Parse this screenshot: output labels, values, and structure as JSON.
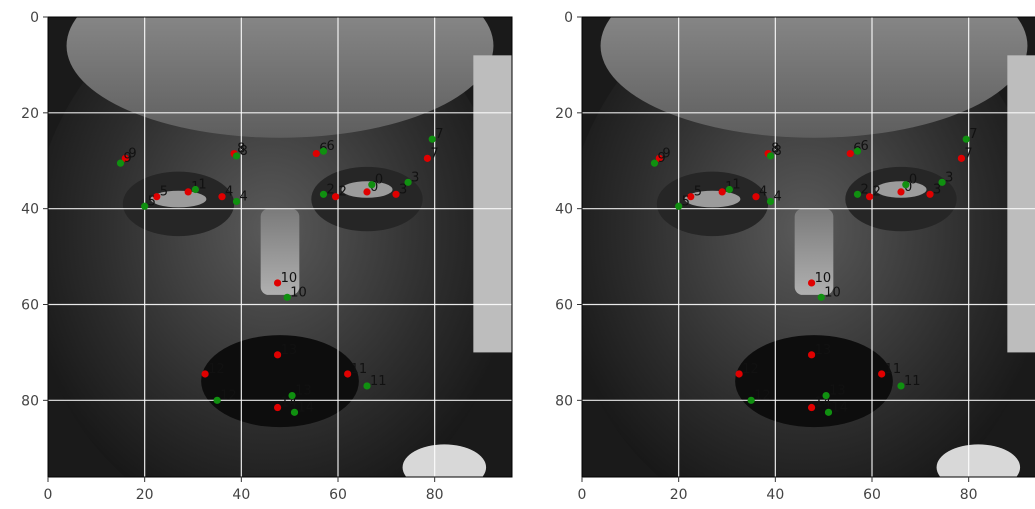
{
  "chart_data": [
    {
      "type": "scatter",
      "background": "grayscale face image",
      "xlim": [
        0,
        96
      ],
      "ylim": [
        96,
        0
      ],
      "xticks": [
        0,
        20,
        40,
        60,
        80
      ],
      "yticks": [
        0,
        20,
        40,
        60,
        80
      ],
      "grid": true,
      "series": [
        {
          "color": "#e00000",
          "points": [
            {
              "label": "0",
              "x": 66,
              "y": 36.5
            },
            {
              "label": "1",
              "x": 29,
              "y": 36.5
            },
            {
              "label": "2",
              "x": 59.5,
              "y": 37.5
            },
            {
              "label": "3",
              "x": 72,
              "y": 37
            },
            {
              "label": "4",
              "x": 36,
              "y": 37.5
            },
            {
              "label": "5",
              "x": 22.5,
              "y": 37.5
            },
            {
              "label": "6",
              "x": 55.5,
              "y": 28.5
            },
            {
              "label": "7",
              "x": 78.5,
              "y": 29.5
            },
            {
              "label": "8",
              "x": 38.5,
              "y": 28.5
            },
            {
              "label": "9",
              "x": 16,
              "y": 29.5
            },
            {
              "label": "10",
              "x": 47.5,
              "y": 55.5
            },
            {
              "label": "11",
              "x": 62,
              "y": 74.5
            },
            {
              "label": "12",
              "x": 32.5,
              "y": 74.5
            },
            {
              "label": "13",
              "x": 47.5,
              "y": 70.5
            },
            {
              "label": "14",
              "x": 47.5,
              "y": 81.5
            }
          ]
        },
        {
          "color": "#109010",
          "points": [
            {
              "label": "0",
              "x": 67,
              "y": 35
            },
            {
              "label": "1",
              "x": 30.5,
              "y": 36
            },
            {
              "label": "2",
              "x": 57,
              "y": 37
            },
            {
              "label": "3",
              "x": 74.5,
              "y": 34.5
            },
            {
              "label": "4",
              "x": 39,
              "y": 38.5
            },
            {
              "label": "5",
              "x": 20,
              "y": 39.5
            },
            {
              "label": "6",
              "x": 57,
              "y": 28
            },
            {
              "label": "7",
              "x": 79.5,
              "y": 25.5
            },
            {
              "label": "8",
              "x": 39,
              "y": 29
            },
            {
              "label": "9",
              "x": 15,
              "y": 30.5
            },
            {
              "label": "10",
              "x": 49.5,
              "y": 58.5
            },
            {
              "label": "11",
              "x": 66,
              "y": 77
            },
            {
              "label": "12",
              "x": 35,
              "y": 80
            },
            {
              "label": "13",
              "x": 50.5,
              "y": 79
            },
            {
              "label": "14",
              "x": 51,
              "y": 82.5
            }
          ]
        }
      ]
    },
    {
      "type": "scatter",
      "background": "grayscale face image",
      "xlim": [
        0,
        96
      ],
      "ylim": [
        96,
        0
      ],
      "xticks": [
        0,
        20,
        40,
        60,
        80
      ],
      "yticks": [
        0,
        20,
        40,
        60,
        80
      ],
      "grid": true,
      "series": [
        {
          "color": "#e00000",
          "points": [
            {
              "label": "0",
              "x": 66,
              "y": 36.5
            },
            {
              "label": "1",
              "x": 29,
              "y": 36.5
            },
            {
              "label": "2",
              "x": 59.5,
              "y": 37.5
            },
            {
              "label": "3",
              "x": 72,
              "y": 37
            },
            {
              "label": "4",
              "x": 36,
              "y": 37.5
            },
            {
              "label": "5",
              "x": 22.5,
              "y": 37.5
            },
            {
              "label": "6",
              "x": 55.5,
              "y": 28.5
            },
            {
              "label": "7",
              "x": 78.5,
              "y": 29.5
            },
            {
              "label": "8",
              "x": 38.5,
              "y": 28.5
            },
            {
              "label": "9",
              "x": 16,
              "y": 29.5
            },
            {
              "label": "10",
              "x": 47.5,
              "y": 55.5
            },
            {
              "label": "11",
              "x": 62,
              "y": 74.5
            },
            {
              "label": "12",
              "x": 32.5,
              "y": 74.5
            },
            {
              "label": "13",
              "x": 47.5,
              "y": 70.5
            },
            {
              "label": "14",
              "x": 47.5,
              "y": 81.5
            }
          ]
        },
        {
          "color": "#109010",
          "points": [
            {
              "label": "0",
              "x": 67,
              "y": 35
            },
            {
              "label": "1",
              "x": 30.5,
              "y": 36
            },
            {
              "label": "2",
              "x": 57,
              "y": 37
            },
            {
              "label": "3",
              "x": 74.5,
              "y": 34.5
            },
            {
              "label": "4",
              "x": 39,
              "y": 38.5
            },
            {
              "label": "5",
              "x": 20,
              "y": 39.5
            },
            {
              "label": "6",
              "x": 57,
              "y": 28
            },
            {
              "label": "7",
              "x": 79.5,
              "y": 25.5
            },
            {
              "label": "8",
              "x": 39,
              "y": 29
            },
            {
              "label": "9",
              "x": 15,
              "y": 30.5
            },
            {
              "label": "10",
              "x": 49.5,
              "y": 58.5
            },
            {
              "label": "11",
              "x": 66,
              "y": 77
            },
            {
              "label": "12",
              "x": 35,
              "y": 80
            },
            {
              "label": "13",
              "x": 50.5,
              "y": 79
            },
            {
              "label": "14",
              "x": 51,
              "y": 82.5
            }
          ]
        }
      ]
    }
  ]
}
